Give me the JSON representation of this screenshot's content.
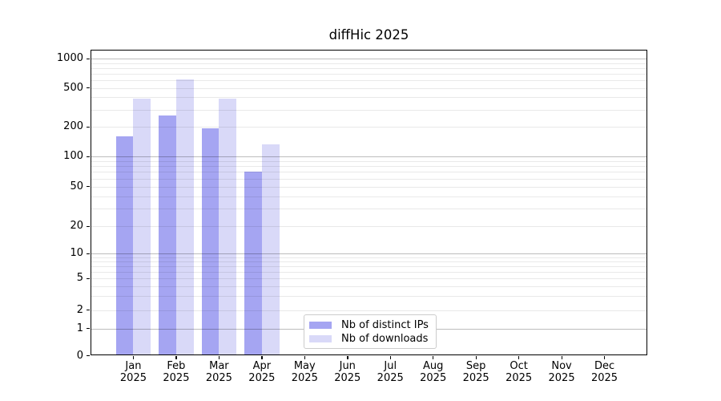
{
  "chart_data": {
    "type": "bar",
    "title": "diffHic 2025",
    "year": "2025",
    "categories": [
      "Jan",
      "Feb",
      "Mar",
      "Apr",
      "May",
      "Jun",
      "Jul",
      "Aug",
      "Sep",
      "Oct",
      "Nov",
      "Dec"
    ],
    "series": [
      {
        "name": "Nb of distinct IPs",
        "color": "#a5a5f2",
        "values": [
          160,
          260,
          192,
          70,
          0,
          0,
          0,
          0,
          0,
          0,
          0,
          0
        ]
      },
      {
        "name": "Nb of downloads",
        "color": "#d9d9f8",
        "values": [
          385,
          610,
          390,
          133,
          0,
          0,
          0,
          0,
          0,
          0,
          0,
          0
        ]
      }
    ],
    "yticks": [
      0,
      1,
      2,
      5,
      10,
      20,
      50,
      100,
      200,
      500,
      1000
    ],
    "xlabel": "",
    "ylabel": "",
    "ylim": [
      0,
      1000
    ],
    "scale": "log-like (Bioconductor download-stats style)",
    "grid": "horizontal major and minor gridlines",
    "legend_position": "lower center"
  }
}
